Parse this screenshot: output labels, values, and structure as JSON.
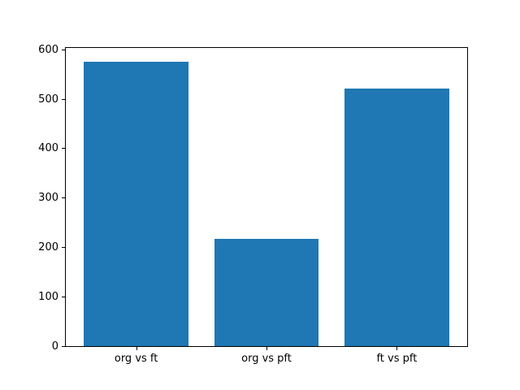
{
  "chart_data": {
    "type": "bar",
    "title": "",
    "xlabel": "",
    "ylabel": "",
    "categories": [
      "org vs ft",
      "org vs pft",
      "ft vs pft"
    ],
    "values": [
      575,
      217,
      521
    ],
    "yticks": [
      0,
      100,
      200,
      300,
      400,
      500,
      600
    ],
    "ylim": [
      0,
      603.75
    ],
    "xlim": [
      -0.54,
      2.54
    ],
    "bar_rel_width": 0.8,
    "bar_color": "#1f77b4",
    "spine_color": "#000000",
    "tick_label_color": "#000000",
    "background_color": "#ffffff",
    "grid": false,
    "legend": null
  }
}
